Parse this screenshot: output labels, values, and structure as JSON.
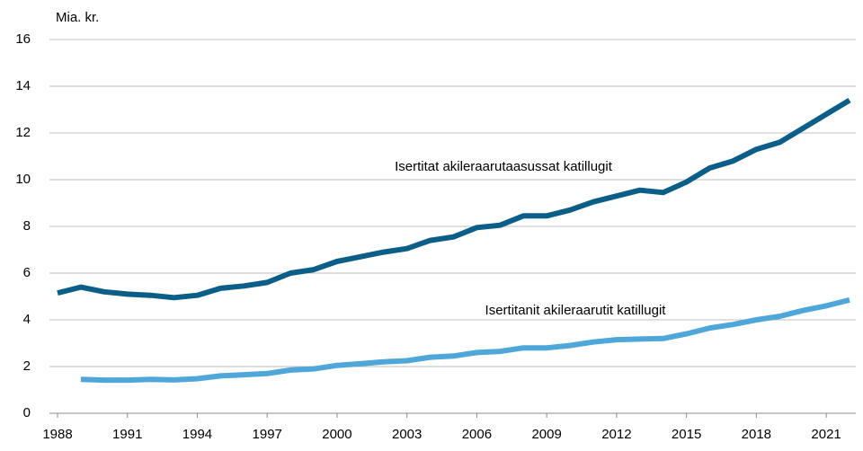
{
  "chart_data": {
    "type": "line",
    "y_label": "Mia. kr.",
    "x": [
      1988,
      1989,
      1990,
      1991,
      1992,
      1993,
      1994,
      1995,
      1996,
      1997,
      1998,
      1999,
      2000,
      2001,
      2002,
      2003,
      2004,
      2005,
      2006,
      2007,
      2008,
      2009,
      2010,
      2011,
      2012,
      2013,
      2014,
      2015,
      2016,
      2017,
      2018,
      2019,
      2020,
      2021,
      2022
    ],
    "series": [
      {
        "name": "Isertitat akileraarutaasussat katillugit",
        "color": "#0b5e87",
        "values": [
          5.15,
          5.4,
          5.2,
          5.1,
          5.05,
          4.95,
          5.05,
          5.35,
          5.45,
          5.6,
          6.0,
          6.15,
          6.5,
          6.7,
          6.9,
          7.05,
          7.4,
          7.55,
          7.95,
          8.05,
          8.45,
          8.45,
          8.7,
          9.05,
          9.3,
          9.55,
          9.45,
          9.9,
          10.5,
          10.8,
          11.3,
          11.6,
          12.2,
          12.8,
          13.4
        ]
      },
      {
        "name": "Isertitanit akileraarutit katillugit",
        "color": "#4ea6d9",
        "values": [
          null,
          1.45,
          1.42,
          1.42,
          1.45,
          1.43,
          1.48,
          1.6,
          1.65,
          1.7,
          1.85,
          1.9,
          2.05,
          2.12,
          2.2,
          2.25,
          2.4,
          2.45,
          2.6,
          2.65,
          2.8,
          2.8,
          2.9,
          3.05,
          3.15,
          3.18,
          3.2,
          3.4,
          3.65,
          3.8,
          4.0,
          4.15,
          4.4,
          4.6,
          4.85
        ]
      }
    ],
    "xlim": [
      1988,
      2022
    ],
    "xticks": [
      1988,
      1991,
      1994,
      1997,
      2000,
      2003,
      2006,
      2009,
      2012,
      2015,
      2018,
      2021
    ],
    "ylim": [
      0,
      16
    ],
    "yticks": [
      0,
      2,
      4,
      6,
      8,
      10,
      12,
      14,
      16
    ],
    "grid": true
  }
}
